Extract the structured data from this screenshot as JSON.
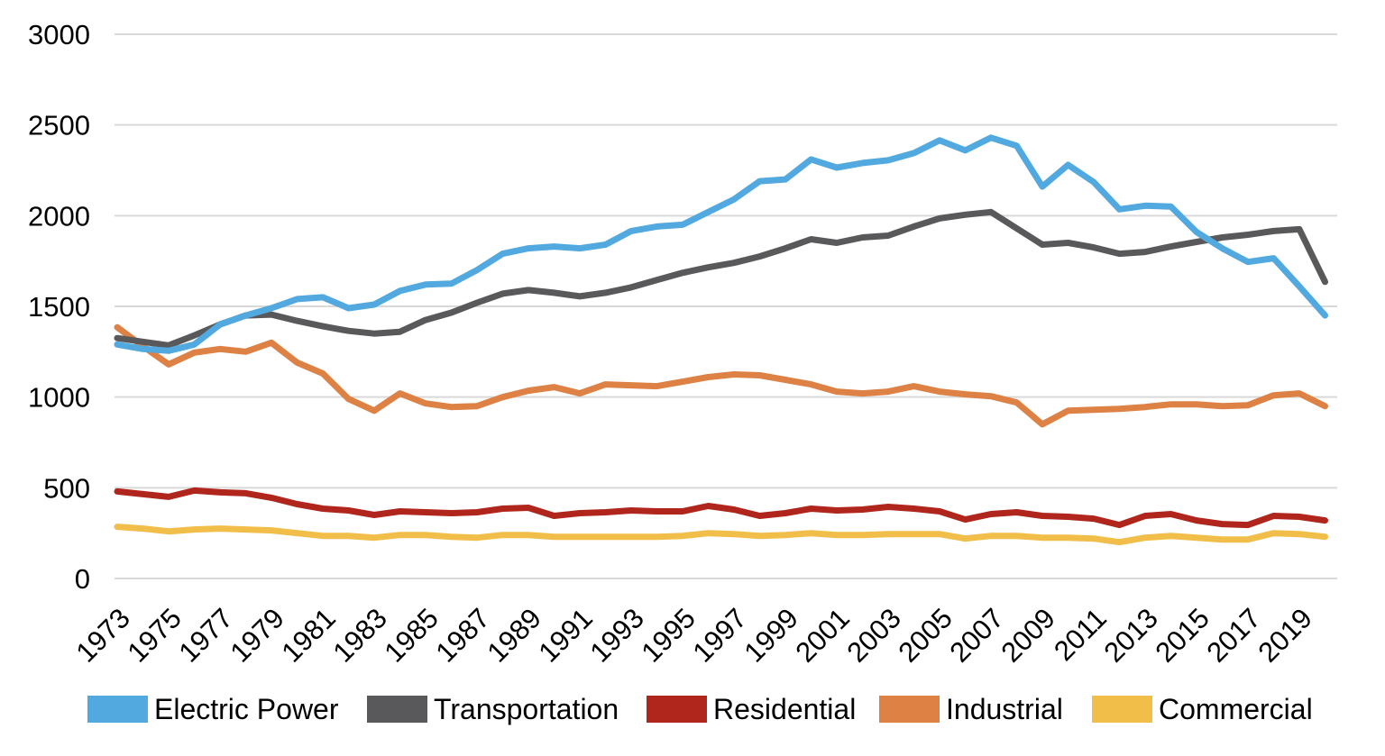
{
  "chart": {
    "background_color": "#ffffff",
    "gridline_color": "#d9d9d9",
    "axis_text_color": "#000000",
    "legend_text_color": "#000000"
  },
  "chart_data": {
    "type": "line",
    "title": "",
    "xlabel": "",
    "ylabel": "",
    "x": [
      1973,
      1974,
      1975,
      1976,
      1977,
      1978,
      1979,
      1980,
      1981,
      1982,
      1983,
      1984,
      1985,
      1986,
      1987,
      1988,
      1989,
      1990,
      1991,
      1992,
      1993,
      1994,
      1995,
      1996,
      1997,
      1998,
      1999,
      2000,
      2001,
      2002,
      2003,
      2004,
      2005,
      2006,
      2007,
      2008,
      2009,
      2010,
      2011,
      2012,
      2013,
      2014,
      2015,
      2016,
      2017,
      2018,
      2019,
      2020
    ],
    "xtick_labels": [
      "1973",
      "1975",
      "1977",
      "1979",
      "1981",
      "1983",
      "1985",
      "1987",
      "1989",
      "1991",
      "1993",
      "1995",
      "1997",
      "1999",
      "2001",
      "2003",
      "2005",
      "2007",
      "2009",
      "2011",
      "2013",
      "2015",
      "2017",
      "2019"
    ],
    "ylim": [
      0,
      3000
    ],
    "yticks": [
      0,
      500,
      1000,
      1500,
      2000,
      2500,
      3000
    ],
    "grid": "horizontal",
    "legend_position": "bottom",
    "series": [
      {
        "name": "Electric Power",
        "color": "#52a9df",
        "values": [
          1290,
          1265,
          1255,
          1290,
          1400,
          1450,
          1490,
          1540,
          1550,
          1490,
          1510,
          1585,
          1620,
          1625,
          1700,
          1790,
          1820,
          1830,
          1820,
          1840,
          1915,
          1940,
          1950,
          2020,
          2090,
          2190,
          2200,
          2310,
          2265,
          2290,
          2305,
          2345,
          2415,
          2360,
          2430,
          2385,
          2160,
          2280,
          2185,
          2035,
          2055,
          2050,
          1910,
          1820,
          1745,
          1765,
          1610,
          1450
        ]
      },
      {
        "name": "Transportation",
        "color": "#59595b",
        "values": [
          1325,
          1305,
          1285,
          1340,
          1400,
          1450,
          1455,
          1420,
          1390,
          1365,
          1350,
          1360,
          1425,
          1465,
          1520,
          1570,
          1590,
          1575,
          1555,
          1575,
          1605,
          1645,
          1685,
          1715,
          1740,
          1775,
          1820,
          1870,
          1850,
          1880,
          1890,
          1940,
          1985,
          2005,
          2020,
          1930,
          1840,
          1850,
          1825,
          1790,
          1800,
          1830,
          1855,
          1880,
          1895,
          1915,
          1925,
          1635
        ]
      },
      {
        "name": "Residential",
        "color": "#b0261c",
        "values": [
          480,
          465,
          450,
          485,
          475,
          470,
          445,
          410,
          385,
          375,
          350,
          370,
          365,
          360,
          365,
          385,
          390,
          345,
          360,
          365,
          375,
          370,
          370,
          400,
          380,
          345,
          360,
          385,
          375,
          380,
          395,
          385,
          370,
          325,
          355,
          365,
          345,
          340,
          330,
          295,
          345,
          355,
          320,
          300,
          295,
          345,
          340,
          320
        ]
      },
      {
        "name": "Industrial",
        "color": "#dd8144",
        "values": [
          1385,
          1280,
          1180,
          1245,
          1265,
          1250,
          1300,
          1190,
          1130,
          990,
          925,
          1020,
          965,
          945,
          950,
          1000,
          1035,
          1055,
          1020,
          1070,
          1065,
          1060,
          1085,
          1110,
          1125,
          1120,
          1095,
          1070,
          1030,
          1020,
          1030,
          1060,
          1030,
          1015,
          1005,
          970,
          850,
          925,
          930,
          935,
          945,
          960,
          960,
          950,
          955,
          1010,
          1020,
          950
        ]
      },
      {
        "name": "Commercial",
        "color": "#f2be4a",
        "values": [
          285,
          275,
          260,
          270,
          275,
          270,
          265,
          250,
          235,
          235,
          225,
          240,
          240,
          230,
          225,
          240,
          240,
          230,
          230,
          230,
          230,
          230,
          235,
          250,
          245,
          235,
          240,
          250,
          240,
          240,
          245,
          245,
          245,
          220,
          235,
          235,
          225,
          225,
          220,
          200,
          225,
          235,
          225,
          215,
          215,
          250,
          245,
          230
        ]
      }
    ]
  }
}
